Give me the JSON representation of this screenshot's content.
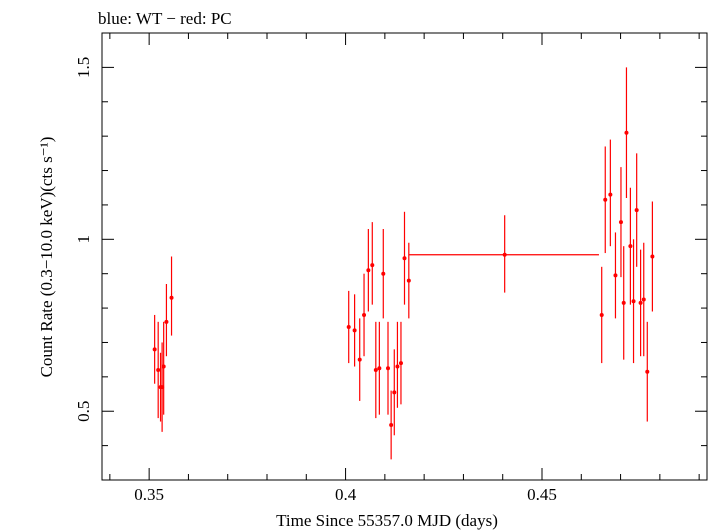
{
  "chart_data": {
    "type": "scatter",
    "title": "blue: WT − red: PC",
    "xlabel": "Time Since 55357.0 MJD (days)",
    "ylabel": "Count Rate (0.3−10.0 keV)(cts s⁻¹)",
    "xlim": [
      0.338,
      0.492
    ],
    "ylim": [
      0.3,
      1.6
    ],
    "xticks": [
      0.35,
      0.4,
      0.45
    ],
    "xtick_labels": [
      "0.35",
      "0.4",
      "0.45"
    ],
    "yticks": [
      0.5,
      1.0,
      1.5
    ],
    "ytick_labels": [
      "0.5",
      "1",
      "1.5"
    ],
    "grid": false,
    "series": [
      {
        "color": "#ff0000",
        "points": [
          {
            "x": 0.3514,
            "y": 0.68,
            "ylo": 0.58,
            "yhi": 0.78
          },
          {
            "x": 0.3523,
            "y": 0.62,
            "ylo": 0.48,
            "yhi": 0.76
          },
          {
            "x": 0.3529,
            "y": 0.57,
            "ylo": 0.47,
            "yhi": 0.67
          },
          {
            "x": 0.3533,
            "y": 0.57,
            "ylo": 0.44,
            "yhi": 0.7
          },
          {
            "x": 0.3537,
            "y": 0.63,
            "ylo": 0.49,
            "yhi": 0.76
          },
          {
            "x": 0.3544,
            "y": 0.76,
            "ylo": 0.66,
            "yhi": 0.87
          },
          {
            "x": 0.3557,
            "y": 0.83,
            "ylo": 0.72,
            "yhi": 0.95
          },
          {
            "x": 0.4008,
            "y": 0.745,
            "ylo": 0.64,
            "yhi": 0.85
          },
          {
            "x": 0.4023,
            "y": 0.735,
            "ylo": 0.63,
            "yhi": 0.84
          },
          {
            "x": 0.4036,
            "y": 0.65,
            "ylo": 0.53,
            "yhi": 0.77
          },
          {
            "x": 0.4047,
            "y": 0.78,
            "ylo": 0.66,
            "yhi": 0.9
          },
          {
            "x": 0.4058,
            "y": 0.91,
            "ylo": 0.79,
            "yhi": 1.03
          },
          {
            "x": 0.4068,
            "y": 0.925,
            "ylo": 0.81,
            "yhi": 1.05
          },
          {
            "x": 0.4077,
            "y": 0.62,
            "ylo": 0.48,
            "yhi": 0.76
          },
          {
            "x": 0.4086,
            "y": 0.625,
            "ylo": 0.49,
            "yhi": 0.76
          },
          {
            "x": 0.4096,
            "y": 0.9,
            "ylo": 0.77,
            "yhi": 1.03
          },
          {
            "x": 0.4108,
            "y": 0.625,
            "ylo": 0.49,
            "yhi": 0.76
          },
          {
            "x": 0.4116,
            "y": 0.46,
            "ylo": 0.36,
            "yhi": 0.56
          },
          {
            "x": 0.4124,
            "y": 0.555,
            "ylo": 0.43,
            "yhi": 0.68
          },
          {
            "x": 0.4132,
            "y": 0.63,
            "ylo": 0.51,
            "yhi": 0.76
          },
          {
            "x": 0.4141,
            "y": 0.64,
            "ylo": 0.52,
            "yhi": 0.76
          },
          {
            "x": 0.415,
            "y": 0.945,
            "ylo": 0.81,
            "yhi": 1.08
          },
          {
            "x": 0.4161,
            "y": 0.88,
            "ylo": 0.77,
            "yhi": 0.99
          },
          {
            "x": 0.4405,
            "y": 0.955,
            "ylo": 0.845,
            "yhi": 1.07,
            "xlo": 0.4162,
            "xhi": 0.4645
          },
          {
            "x": 0.4652,
            "y": 0.78,
            "ylo": 0.64,
            "yhi": 0.92
          },
          {
            "x": 0.4661,
            "y": 1.115,
            "ylo": 0.96,
            "yhi": 1.27
          },
          {
            "x": 0.4674,
            "y": 1.13,
            "ylo": 0.98,
            "yhi": 1.29
          },
          {
            "x": 0.4687,
            "y": 0.895,
            "ylo": 0.77,
            "yhi": 1.02
          },
          {
            "x": 0.4701,
            "y": 1.05,
            "ylo": 0.89,
            "yhi": 1.21
          },
          {
            "x": 0.4708,
            "y": 0.815,
            "ylo": 0.65,
            "yhi": 0.98
          },
          {
            "x": 0.4715,
            "y": 1.31,
            "ylo": 1.12,
            "yhi": 1.5
          },
          {
            "x": 0.4725,
            "y": 0.98,
            "ylo": 0.81,
            "yhi": 1.15
          },
          {
            "x": 0.4733,
            "y": 0.82,
            "ylo": 0.64,
            "yhi": 1.0
          },
          {
            "x": 0.4741,
            "y": 1.085,
            "ylo": 0.92,
            "yhi": 1.25
          },
          {
            "x": 0.4751,
            "y": 0.815,
            "ylo": 0.66,
            "yhi": 0.97
          },
          {
            "x": 0.4759,
            "y": 0.825,
            "ylo": 0.66,
            "yhi": 0.99
          },
          {
            "x": 0.4768,
            "y": 0.615,
            "ylo": 0.47,
            "yhi": 0.76
          },
          {
            "x": 0.4781,
            "y": 0.95,
            "ylo": 0.79,
            "yhi": 1.11
          }
        ]
      }
    ]
  }
}
